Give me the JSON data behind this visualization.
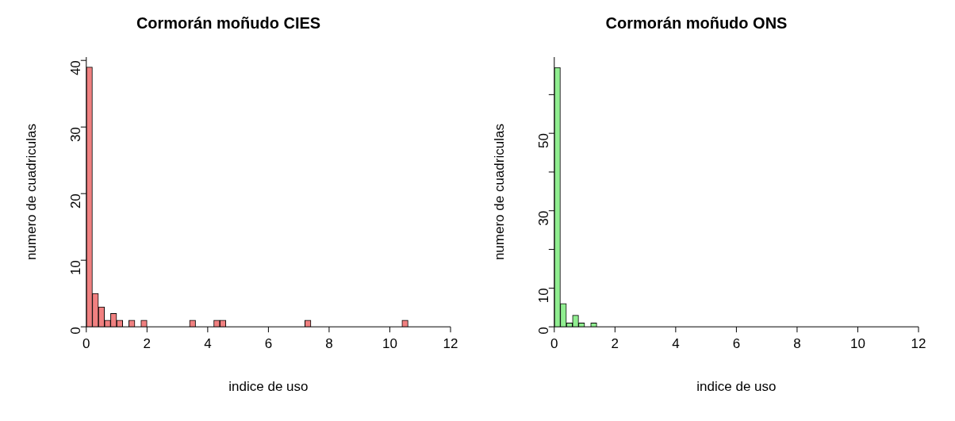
{
  "chart_data": [
    {
      "type": "histogram",
      "title": "Cormorán moñudo CIES",
      "xlabel": "indice de uso",
      "ylabel": "numero de cuadriculas",
      "color": "#f08080",
      "bins": [
        0,
        0.2,
        0.4,
        0.6,
        0.8,
        1,
        1.2,
        1.4,
        1.6,
        1.8,
        2,
        2.2,
        2.4,
        2.6,
        2.8,
        3,
        3.2,
        3.4,
        3.6,
        3.8,
        4,
        4.2,
        4.4,
        4.6,
        4.8,
        5,
        5.2,
        5.4,
        5.6,
        5.8,
        6,
        6.2,
        6.4,
        6.6,
        6.8,
        7,
        7.2,
        7.4,
        7.6,
        7.8,
        8,
        8.2,
        8.4,
        8.6,
        8.8,
        9,
        9.2,
        9.4,
        9.6,
        9.8,
        10,
        10.2,
        10.4,
        10.6,
        10.8,
        11,
        11.2,
        11.4,
        11.6,
        11.8,
        12
      ],
      "values": [
        39,
        5,
        3,
        1,
        2,
        1,
        0,
        1,
        0,
        1,
        0,
        0,
        0,
        0,
        0,
        0,
        0,
        1,
        0,
        0,
        0,
        1,
        1,
        0,
        0,
        0,
        0,
        0,
        0,
        0,
        0,
        0,
        0,
        0,
        0,
        0,
        1,
        0,
        0,
        0,
        0,
        0,
        0,
        0,
        0,
        0,
        0,
        0,
        0,
        0,
        0,
        0,
        1,
        0,
        0,
        0,
        0,
        0,
        0,
        0
      ],
      "xlim": [
        0,
        12
      ],
      "xticks": [
        0,
        2,
        4,
        6,
        8,
        10,
        12
      ],
      "ylim": [
        0,
        40.5
      ],
      "yticks": [
        0,
        10,
        20,
        30,
        40
      ]
    },
    {
      "type": "histogram",
      "title": "Cormorán moñudo ONS",
      "xlabel": "indice de uso",
      "ylabel": "numero de cuadriculas",
      "color": "#90ee90",
      "bins": [
        0,
        0.2,
        0.4,
        0.6,
        0.8,
        1,
        1.2,
        1.4,
        1.6,
        1.8,
        2,
        2.2,
        2.4,
        2.6,
        2.8,
        3,
        3.2,
        3.4,
        3.6,
        3.8,
        4,
        4.2,
        4.4,
        4.6,
        4.8,
        5,
        5.2,
        5.4,
        5.6,
        5.8,
        6,
        6.2,
        6.4,
        6.6,
        6.8,
        7,
        7.2,
        7.4,
        7.6,
        7.8,
        8,
        8.2,
        8.4,
        8.6,
        8.8,
        9,
        9.2,
        9.4,
        9.6,
        9.8,
        10,
        10.2,
        10.4,
        10.6,
        10.8,
        11,
        11.2,
        11.4,
        11.6,
        11.8,
        12
      ],
      "values": [
        67,
        6,
        1,
        3,
        1,
        0,
        1,
        0,
        0,
        0,
        0,
        0,
        0,
        0,
        0,
        0,
        0,
        0,
        0,
        0,
        0,
        0,
        0,
        0,
        0,
        0,
        0,
        0,
        0,
        0,
        0,
        0,
        0,
        0,
        0,
        0,
        0,
        0,
        0,
        0,
        0,
        0,
        0,
        0,
        0,
        0,
        0,
        0,
        0,
        0,
        0,
        0,
        0,
        0,
        0,
        0,
        0,
        0,
        0,
        0
      ],
      "xlim": [
        0,
        12
      ],
      "xticks": [
        0,
        2,
        4,
        6,
        8,
        10,
        12
      ],
      "ylim": [
        0,
        69.7
      ],
      "yticks": [
        0,
        10,
        {
          "value": 20,
          "label": null
        },
        30,
        {
          "value": 40,
          "label": null
        },
        50,
        {
          "value": 60,
          "label": null
        }
      ]
    }
  ]
}
